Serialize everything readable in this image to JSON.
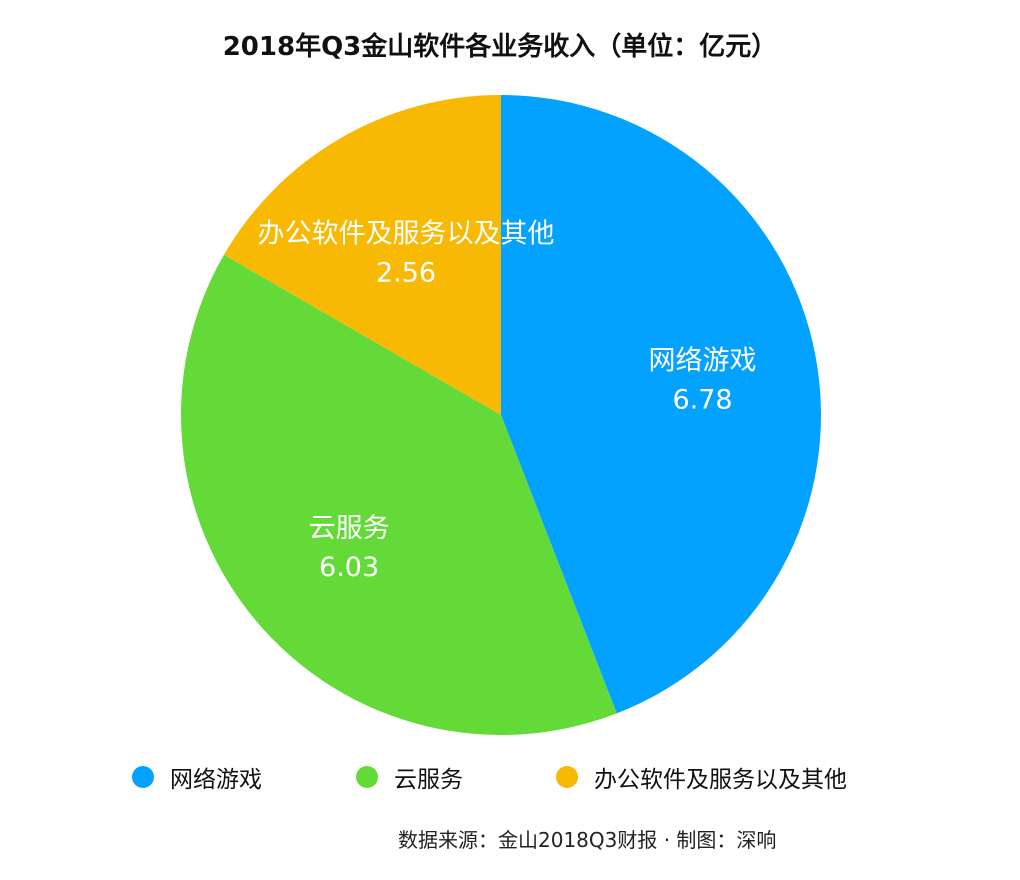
{
  "chart_data": {
    "type": "pie",
    "title": "2018年Q3金山软件各业务收入（单位：亿元）",
    "series": [
      {
        "name": "网络游戏",
        "value": 6.78,
        "value_label": "6.78",
        "color": "#03a2ff"
      },
      {
        "name": "云服务",
        "value": 6.03,
        "value_label": "6.03",
        "color": "#63da38"
      },
      {
        "name": "办公软件及服务以及其他",
        "value": 2.56,
        "value_label": "2.56",
        "color": "#f8b904"
      }
    ],
    "start": "12 o'clock",
    "direction": "clockwise",
    "legend_position": "bottom"
  },
  "source_note": "数据来源：金山2018Q3财报 · 制图：深响"
}
